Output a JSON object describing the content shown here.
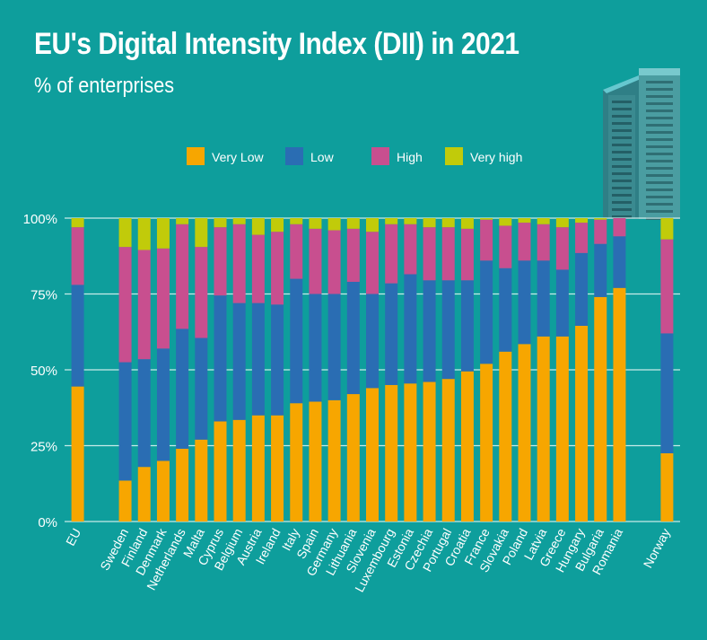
{
  "title": "EU's Digital Intensity Index (DII) in 2021",
  "subtitle": "% of enterprises",
  "colors": {
    "background": "#0e9e9c",
    "very_low": "#f7a600",
    "low": "#2a6db3",
    "high": "#c84f8f",
    "very_high": "#c1cb0a",
    "grid": "#c8ebe9"
  },
  "chart_data": {
    "type": "bar",
    "stacked": true,
    "title": "EU's Digital Intensity Index (DII) in 2021",
    "subtitle": "% of enterprises",
    "ylim": [
      0,
      100
    ],
    "yticks": [
      "0%",
      "25%",
      "50%",
      "75%",
      "100%"
    ],
    "ytick_values": [
      0,
      25,
      50,
      75,
      100
    ],
    "legend_position": "top",
    "grid": true,
    "categories": [
      "EU",
      "Sweden",
      "Finland",
      "Denmark",
      "Netherlands",
      "Malta",
      "Cyprus",
      "Belgium",
      "Austria",
      "Ireland",
      "Italy",
      "Spain",
      "Germany",
      "Lithuania",
      "Slovenia",
      "Luxembourg",
      "Estonia",
      "Czechia",
      "Portugal",
      "Croatia",
      "France",
      "Slovakia",
      "Poland",
      "Latvia",
      "Greece",
      "Hungary",
      "Bulgaria",
      "Romania",
      "Norway"
    ],
    "gap_after": [
      0,
      27
    ],
    "series": [
      {
        "name": "Very Low",
        "color": "#f7a600",
        "values": [
          44.5,
          13.5,
          18,
          20,
          24,
          27,
          33,
          33.5,
          35,
          35,
          39,
          39.5,
          40,
          42,
          44,
          45,
          45.5,
          46,
          47,
          49.5,
          52,
          56,
          58.5,
          61,
          61,
          64.5,
          74,
          77,
          22.5
        ]
      },
      {
        "name": "Low",
        "color": "#2a6db3",
        "values": [
          33.5,
          39,
          35.5,
          37,
          39.5,
          33.5,
          41.5,
          38.5,
          37,
          36.5,
          41,
          35.5,
          35,
          37,
          31,
          33.5,
          36,
          33.5,
          32.5,
          30,
          34,
          27.5,
          27.5,
          25,
          22,
          24,
          17.5,
          17,
          39.5
        ]
      },
      {
        "name": "High",
        "color": "#c84f8f",
        "values": [
          19,
          38,
          36,
          33,
          34.5,
          30,
          22.5,
          26,
          22.5,
          24,
          18,
          21.5,
          21,
          17.5,
          20.5,
          19.5,
          16.5,
          17.5,
          17.5,
          17,
          13.5,
          14,
          12.5,
          12,
          14,
          10,
          8,
          6,
          31
        ]
      },
      {
        "name": "Very high",
        "color": "#c1cb0a",
        "values": [
          3,
          9.5,
          10.5,
          10,
          2,
          9.5,
          3,
          2,
          5.5,
          4.5,
          2,
          3.5,
          4,
          3.5,
          4.5,
          2,
          2,
          3,
          3,
          3.5,
          0.5,
          2.5,
          1.5,
          2,
          3,
          1.5,
          0.5,
          0,
          7
        ]
      }
    ]
  }
}
